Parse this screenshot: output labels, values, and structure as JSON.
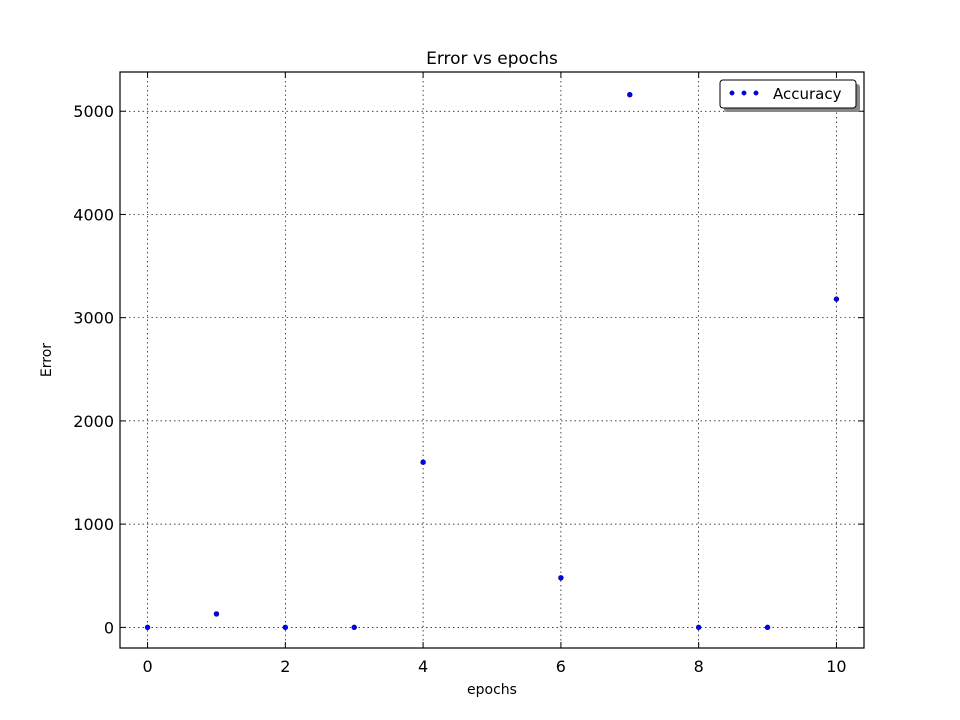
{
  "chart_data": {
    "type": "scatter",
    "title": "Error vs epochs",
    "xlabel": "epochs",
    "ylabel": "Error",
    "xlim": [
      -0.4,
      10.4
    ],
    "ylim": [
      -200,
      5380
    ],
    "xticks": [
      0,
      2,
      4,
      6,
      8,
      10
    ],
    "yticks": [
      0,
      1000,
      2000,
      3000,
      4000,
      5000
    ],
    "grid": true,
    "legend_position": "top-right",
    "series": [
      {
        "name": "Accuracy",
        "color": "#0000ff",
        "x": [
          0,
          1,
          2,
          3,
          4,
          6,
          7,
          8,
          9,
          10
        ],
        "y": [
          0,
          130,
          0,
          0,
          1600,
          480,
          5160,
          0,
          0,
          3180
        ]
      }
    ]
  }
}
